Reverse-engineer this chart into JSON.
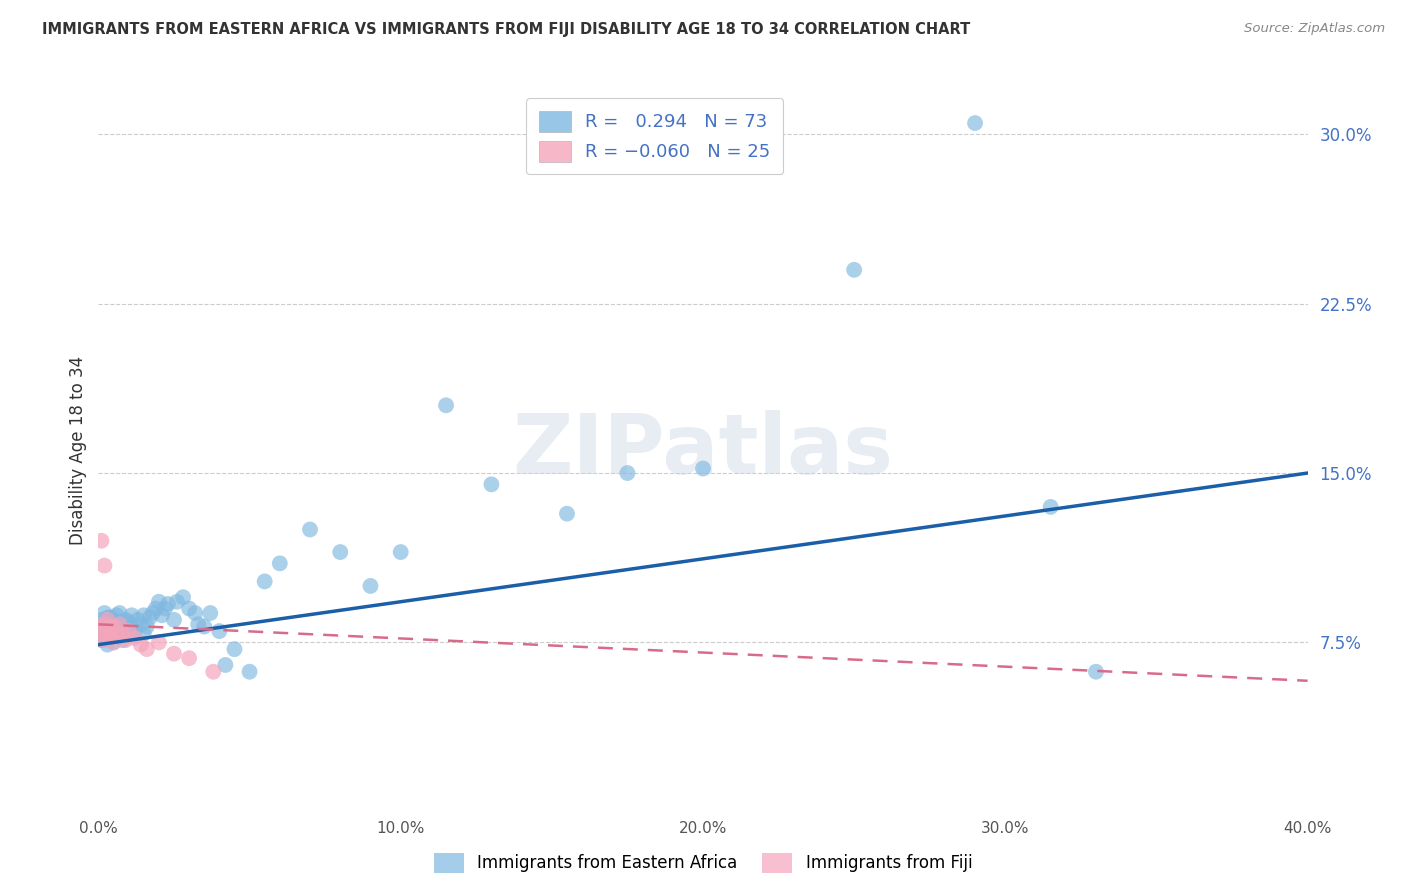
{
  "title": "IMMIGRANTS FROM EASTERN AFRICA VS IMMIGRANTS FROM FIJI DISABILITY AGE 18 TO 34 CORRELATION CHART",
  "source": "Source: ZipAtlas.com",
  "ylabel": "Disability Age 18 to 34",
  "xlim": [
    0.0,
    0.4
  ],
  "ylim": [
    0.0,
    0.32
  ],
  "ytick_labels": [
    "7.5%",
    "15.0%",
    "22.5%",
    "30.0%"
  ],
  "ytick_values": [
    0.075,
    0.15,
    0.225,
    0.3
  ],
  "xtick_values": [
    0.0,
    0.1,
    0.2,
    0.3,
    0.4
  ],
  "xtick_labels": [
    "0.0%",
    "10.0%",
    "20.0%",
    "30.0%",
    "40.0%"
  ],
  "background_color": "#ffffff",
  "watermark": "ZIPatlas",
  "blue_color": "#7fb8e0",
  "pink_color": "#f4a5bb",
  "line_blue": "#1a5fa8",
  "line_pink": "#d96b8a",
  "blue_line_x": [
    0.0,
    0.4
  ],
  "blue_line_y": [
    0.074,
    0.15
  ],
  "pink_line_x": [
    0.0,
    0.4
  ],
  "pink_line_y": [
    0.083,
    0.058
  ],
  "eastern_africa_x": [
    0.001,
    0.001,
    0.001,
    0.001,
    0.002,
    0.002,
    0.002,
    0.002,
    0.003,
    0.003,
    0.003,
    0.003,
    0.003,
    0.004,
    0.004,
    0.004,
    0.005,
    0.005,
    0.005,
    0.005,
    0.006,
    0.006,
    0.007,
    0.007,
    0.007,
    0.008,
    0.008,
    0.009,
    0.009,
    0.01,
    0.01,
    0.011,
    0.011,
    0.012,
    0.013,
    0.014,
    0.015,
    0.015,
    0.016,
    0.017,
    0.018,
    0.019,
    0.02,
    0.021,
    0.022,
    0.023,
    0.025,
    0.026,
    0.028,
    0.03,
    0.032,
    0.033,
    0.035,
    0.037,
    0.04,
    0.042,
    0.045,
    0.05,
    0.055,
    0.06,
    0.07,
    0.08,
    0.09,
    0.1,
    0.115,
    0.13,
    0.155,
    0.175,
    0.2,
    0.25,
    0.29,
    0.315,
    0.33
  ],
  "eastern_africa_y": [
    0.082,
    0.079,
    0.085,
    0.076,
    0.08,
    0.083,
    0.078,
    0.088,
    0.074,
    0.081,
    0.086,
    0.079,
    0.083,
    0.077,
    0.082,
    0.086,
    0.075,
    0.08,
    0.085,
    0.079,
    0.082,
    0.087,
    0.078,
    0.083,
    0.088,
    0.076,
    0.081,
    0.08,
    0.085,
    0.079,
    0.084,
    0.082,
    0.087,
    0.08,
    0.085,
    0.083,
    0.079,
    0.087,
    0.082,
    0.086,
    0.088,
    0.09,
    0.093,
    0.087,
    0.09,
    0.092,
    0.085,
    0.093,
    0.095,
    0.09,
    0.088,
    0.083,
    0.082,
    0.088,
    0.08,
    0.065,
    0.072,
    0.062,
    0.102,
    0.11,
    0.125,
    0.115,
    0.1,
    0.115,
    0.18,
    0.145,
    0.132,
    0.15,
    0.152,
    0.24,
    0.305,
    0.135,
    0.062
  ],
  "fiji_x": [
    0.001,
    0.001,
    0.001,
    0.002,
    0.002,
    0.002,
    0.003,
    0.003,
    0.003,
    0.004,
    0.004,
    0.005,
    0.005,
    0.006,
    0.007,
    0.008,
    0.009,
    0.01,
    0.012,
    0.014,
    0.016,
    0.02,
    0.025,
    0.03,
    0.038
  ],
  "fiji_y": [
    0.082,
    0.12,
    0.079,
    0.109,
    0.076,
    0.083,
    0.08,
    0.085,
    0.078,
    0.082,
    0.079,
    0.075,
    0.082,
    0.078,
    0.083,
    0.079,
    0.076,
    0.08,
    0.077,
    0.074,
    0.072,
    0.075,
    0.07,
    0.068,
    0.062
  ]
}
